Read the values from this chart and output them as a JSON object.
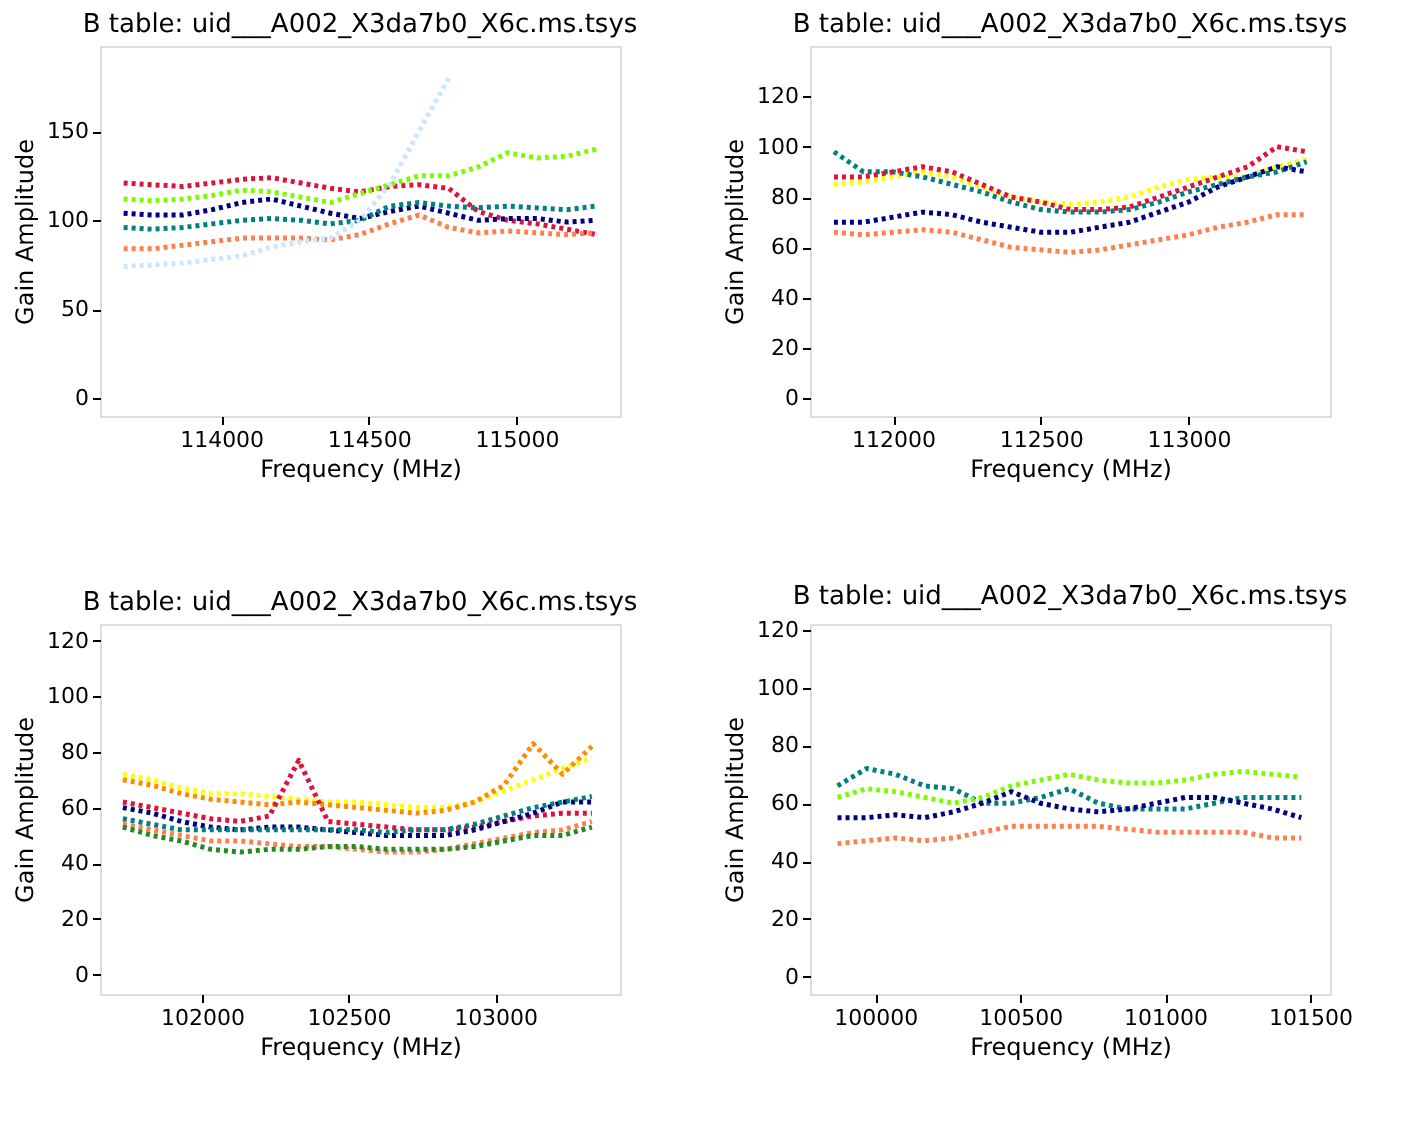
{
  "chart_data": [
    {
      "type": "line",
      "title": "B table: uid___A002_X3da7b0_X6c.ms.tsys",
      "xlabel": "Frequency (MHz)",
      "ylabel": "Gain Amplitude",
      "line_style": "dotted",
      "grid": false,
      "x": [
        113670,
        113770,
        113870,
        113970,
        114070,
        114170,
        114270,
        114370,
        114470,
        114570,
        114670,
        114770,
        114870,
        114970,
        115070,
        115170,
        115270
      ],
      "xlim": [
        113590,
        115350
      ],
      "xticks": [
        114000,
        114500,
        115000
      ],
      "ylim": [
        -10,
        198
      ],
      "yticks": [
        0,
        50,
        100,
        150
      ],
      "series": [
        {
          "color": "#dc143c",
          "values": [
            121,
            120,
            119,
            121,
            123,
            124,
            121,
            118,
            116,
            119,
            120,
            118,
            105,
            100,
            98,
            95,
            92
          ]
        },
        {
          "color": "#7cfc00",
          "values": [
            112,
            111,
            112,
            114,
            117,
            116,
            113,
            110,
            115,
            120,
            125,
            125,
            130,
            138,
            135,
            136,
            140
          ]
        },
        {
          "color": "#000080",
          "values": [
            104,
            103,
            103,
            106,
            110,
            112,
            108,
            104,
            101,
            105,
            108,
            104,
            100,
            101,
            101,
            99,
            100
          ]
        },
        {
          "color": "#008080",
          "values": [
            96,
            95,
            96,
            98,
            100,
            101,
            100,
            98,
            100,
            108,
            110,
            108,
            107,
            108,
            107,
            106,
            108
          ]
        },
        {
          "color": "#ff7f50",
          "values": [
            84,
            84,
            86,
            88,
            90,
            90,
            90,
            89,
            92,
            98,
            103,
            96,
            93,
            94,
            93,
            92,
            93
          ]
        },
        {
          "color": "#cce6ff",
          "values": [
            74,
            75,
            76,
            78,
            80,
            85,
            88,
            90,
            100,
            120,
            150,
            180,
            null,
            null,
            null,
            null,
            null
          ]
        }
      ]
    },
    {
      "type": "line",
      "title": "B table: uid___A002_X3da7b0_X6c.ms.tsys",
      "xlabel": "Frequency (MHz)",
      "ylabel": "Gain Amplitude",
      "line_style": "dotted",
      "grid": false,
      "x": [
        111800,
        111900,
        112000,
        112100,
        112200,
        112300,
        112400,
        112500,
        112600,
        112700,
        112800,
        112900,
        113000,
        113100,
        113200,
        113300,
        113400
      ],
      "xlim": [
        111719,
        113479
      ],
      "xticks": [
        112000,
        112500,
        113000
      ],
      "ylim": [
        -7,
        140
      ],
      "yticks": [
        0,
        20,
        40,
        60,
        80,
        100,
        120
      ],
      "series": [
        {
          "color": "#ffff00",
          "values": [
            85,
            86,
            88,
            90,
            88,
            84,
            80,
            78,
            77,
            78,
            80,
            84,
            87,
            88,
            88,
            92,
            95
          ]
        },
        {
          "color": "#008080",
          "values": [
            98,
            90,
            90,
            88,
            85,
            82,
            78,
            75,
            74,
            74,
            75,
            78,
            82,
            85,
            88,
            90,
            94
          ]
        },
        {
          "color": "#dc143c",
          "values": [
            88,
            88,
            90,
            92,
            90,
            85,
            80,
            78,
            75,
            75,
            76,
            80,
            84,
            88,
            92,
            100,
            98
          ]
        },
        {
          "color": "#000080",
          "values": [
            70,
            70,
            72,
            74,
            73,
            70,
            68,
            66,
            66,
            68,
            70,
            74,
            78,
            84,
            88,
            92,
            90
          ]
        },
        {
          "color": "#ff7f50",
          "values": [
            66,
            65,
            66,
            67,
            66,
            63,
            60,
            59,
            58,
            59,
            61,
            63,
            65,
            68,
            70,
            73,
            73
          ]
        }
      ]
    },
    {
      "type": "line",
      "title": "B table: uid___A002_X3da7b0_X6c.ms.tsys",
      "xlabel": "Frequency (MHz)",
      "ylabel": "Gain Amplitude",
      "line_style": "dotted",
      "grid": false,
      "x": [
        101730,
        101830,
        101930,
        102030,
        102130,
        102230,
        102330,
        102430,
        102530,
        102630,
        102730,
        102830,
        102930,
        103030,
        103130,
        103230,
        103330
      ],
      "xlim": [
        101652,
        103426
      ],
      "xticks": [
        102000,
        102500,
        103000
      ],
      "ylim": [
        -7,
        126
      ],
      "yticks": [
        0,
        20,
        40,
        60,
        80,
        100,
        120
      ],
      "series": [
        {
          "color": "#ffff00",
          "values": [
            72,
            70,
            67,
            65,
            65,
            64,
            63,
            62,
            62,
            61,
            60,
            60,
            62,
            66,
            70,
            74,
            78
          ]
        },
        {
          "color": "#ff8c00",
          "values": [
            70,
            68,
            65,
            63,
            62,
            61,
            62,
            61,
            60,
            59,
            58,
            59,
            62,
            68,
            83,
            72,
            82
          ]
        },
        {
          "color": "#dc143c",
          "values": [
            62,
            60,
            58,
            56,
            55,
            57,
            77,
            55,
            54,
            53,
            52,
            52,
            53,
            55,
            57,
            58,
            58
          ]
        },
        {
          "color": "#000080",
          "values": [
            60,
            58,
            55,
            53,
            52,
            53,
            53,
            52,
            51,
            50,
            50,
            50,
            52,
            55,
            58,
            62,
            62
          ]
        },
        {
          "color": "#008080",
          "values": [
            56,
            54,
            52,
            52,
            52,
            52,
            52,
            52,
            52,
            51,
            52,
            52,
            54,
            57,
            60,
            62,
            64
          ]
        },
        {
          "color": "#ff7f50",
          "values": [
            54,
            52,
            50,
            48,
            48,
            47,
            46,
            46,
            45,
            44,
            44,
            45,
            47,
            49,
            51,
            52,
            55
          ]
        },
        {
          "color": "#228b22",
          "values": [
            53,
            50,
            48,
            45,
            44,
            45,
            45,
            46,
            46,
            45,
            45,
            45,
            46,
            48,
            50,
            50,
            53
          ]
        }
      ]
    },
    {
      "type": "line",
      "title": "B table: uid___A002_X3da7b0_X6c.ms.tsys",
      "xlabel": "Frequency (MHz)",
      "ylabel": "Gain Amplitude",
      "line_style": "dotted",
      "grid": false,
      "x": [
        99870,
        99970,
        100070,
        100170,
        100270,
        100370,
        100470,
        100570,
        100670,
        100770,
        100870,
        100970,
        101070,
        101170,
        101270,
        101370,
        101470
      ],
      "xlim": [
        99775,
        101569
      ],
      "xticks": [
        100000,
        100500,
        101000,
        101500
      ],
      "ylim": [
        -6,
        122
      ],
      "yticks": [
        0,
        20,
        40,
        60,
        80,
        100,
        120
      ],
      "series": [
        {
          "color": "#008080",
          "values": [
            66,
            72,
            70,
            66,
            65,
            60,
            60,
            62,
            65,
            60,
            58,
            58,
            58,
            60,
            62,
            62,
            62
          ]
        },
        {
          "color": "#7cfc00",
          "values": [
            62,
            65,
            64,
            62,
            60,
            62,
            66,
            68,
            70,
            68,
            67,
            67,
            68,
            70,
            71,
            70,
            69
          ]
        },
        {
          "color": "#000080",
          "values": [
            55,
            55,
            56,
            55,
            57,
            60,
            64,
            60,
            58,
            57,
            58,
            60,
            62,
            62,
            60,
            58,
            55
          ]
        },
        {
          "color": "#ff7f50",
          "values": [
            46,
            47,
            48,
            47,
            48,
            50,
            52,
            52,
            52,
            52,
            51,
            50,
            50,
            50,
            50,
            48,
            48
          ]
        }
      ]
    }
  ]
}
